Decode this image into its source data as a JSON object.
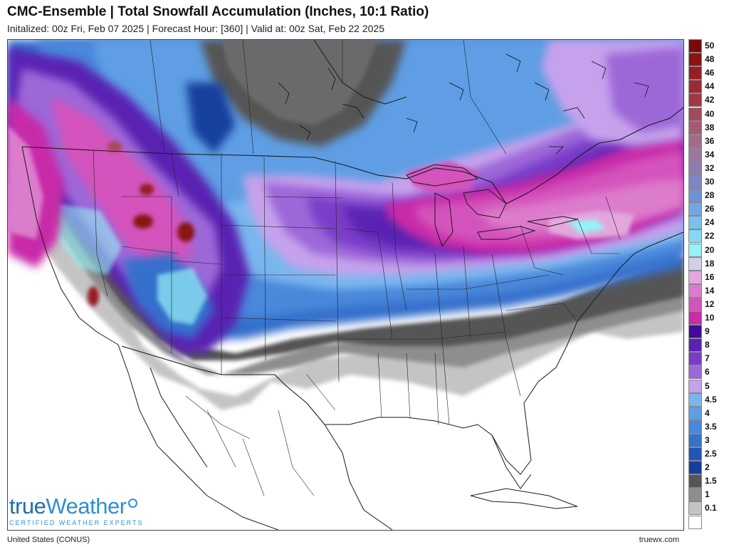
{
  "header": {
    "title": "CMC-Ensemble | Total Snowfall Accumulation (Inches, 10:1 Ratio)",
    "subtitle": "Initalized: 00z Fri, Feb 07 2025 | Forecast Hour: [360] | Valid at: 00z Sat, Feb 22 2025"
  },
  "map": {
    "region": "United States (CONUS)"
  },
  "brand": {
    "logo_part1": "true",
    "logo_part2": "Weather",
    "tagline": "CERTIFIED WEATHER EXPERTS",
    "url": "truewx.com",
    "logo_color": "#1f6ea8",
    "accent_color": "#2f8fd0"
  },
  "legend": {
    "bins": [
      {
        "label": "50",
        "color": "#7a0a0a"
      },
      {
        "label": "48",
        "color": "#8a1414"
      },
      {
        "label": "46",
        "color": "#951f22"
      },
      {
        "label": "44",
        "color": "#9c2a34"
      },
      {
        "label": "42",
        "color": "#a03848"
      },
      {
        "label": "40",
        "color": "#a4485c"
      },
      {
        "label": "38",
        "color": "#a55a72"
      },
      {
        "label": "36",
        "color": "#a46a88"
      },
      {
        "label": "34",
        "color": "#9c76a0"
      },
      {
        "label": "32",
        "color": "#8c7cb4"
      },
      {
        "label": "30",
        "color": "#7e86c8"
      },
      {
        "label": "28",
        "color": "#6e92d6"
      },
      {
        "label": "26",
        "color": "#72a8e2"
      },
      {
        "label": "24",
        "color": "#7cc0ec"
      },
      {
        "label": "22",
        "color": "#86d8f4"
      },
      {
        "label": "20",
        "color": "#96f2f6"
      },
      {
        "label": "18",
        "color": "#d2cfe8"
      },
      {
        "label": "16",
        "color": "#e2a8dc"
      },
      {
        "label": "14",
        "color": "#dc7ccc"
      },
      {
        "label": "12",
        "color": "#d452bc"
      },
      {
        "label": "10",
        "color": "#c82ca8"
      },
      {
        "label": "9",
        "color": "#44089c"
      },
      {
        "label": "8",
        "color": "#5a22b2"
      },
      {
        "label": "7",
        "color": "#7a3cc8"
      },
      {
        "label": "6",
        "color": "#9c68d8"
      },
      {
        "label": "5",
        "color": "#c6a2ec"
      },
      {
        "label": "4.5",
        "color": "#7ab6ee"
      },
      {
        "label": "4",
        "color": "#5e9ee4"
      },
      {
        "label": "3.5",
        "color": "#4888da"
      },
      {
        "label": "3",
        "color": "#3470cc"
      },
      {
        "label": "2.5",
        "color": "#2156b8"
      },
      {
        "label": "2",
        "color": "#143f9c"
      },
      {
        "label": "1.5",
        "color": "#555555"
      },
      {
        "label": "1",
        "color": "#8e8e8e"
      },
      {
        "label": "0.1",
        "color": "#c4c4c4"
      },
      {
        "label": "",
        "color": "#ffffff"
      }
    ]
  }
}
